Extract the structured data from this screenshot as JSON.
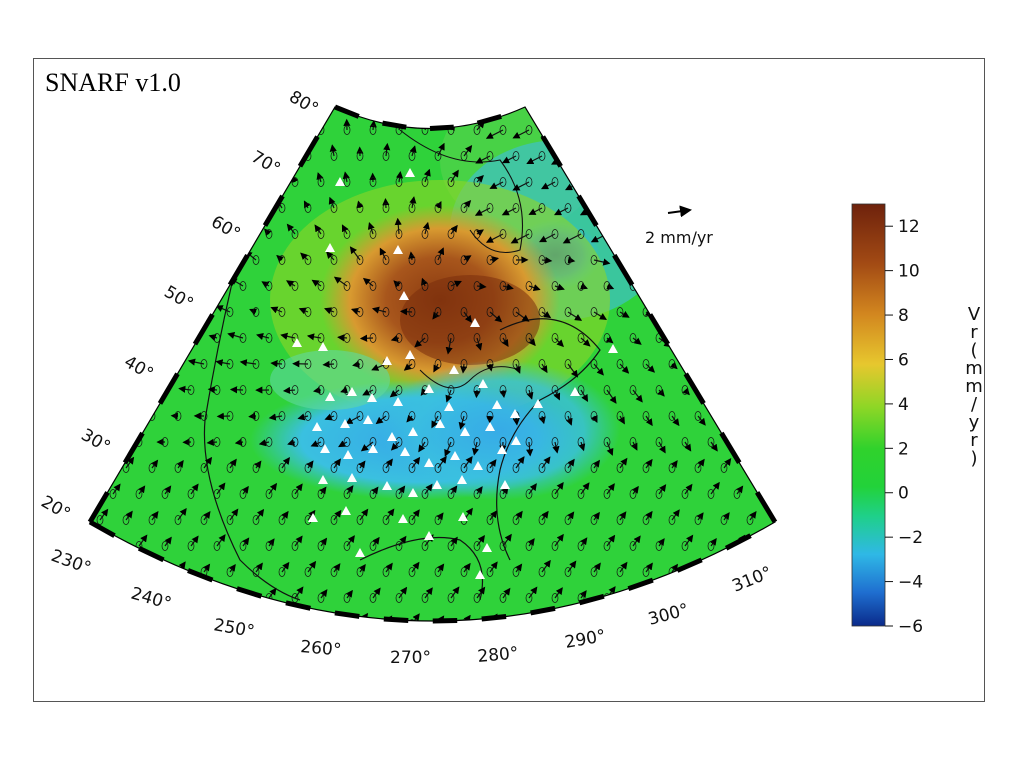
{
  "title": "SNARF v1.0",
  "reference_arrow": {
    "label": "2 mm/yr"
  },
  "map": {
    "lon_labels": [
      "230°",
      "240°",
      "250°",
      "260°",
      "270°",
      "280°",
      "290°",
      "300°",
      "310°"
    ],
    "lat_labels": [
      "20°",
      "30°",
      "40°",
      "50°",
      "60°",
      "70°",
      "80°"
    ]
  },
  "colorbar": {
    "title_chars": [
      "V",
      "r",
      "(",
      "m",
      "m",
      "/",
      "y",
      "r",
      ")"
    ],
    "ticks": [
      "12",
      "10",
      "8",
      "6",
      "4",
      "2",
      "0",
      "−2",
      "−4",
      "−6"
    ],
    "range": [
      -6,
      13
    ],
    "colors": [
      "#0a2a8a",
      "#1f6fd0",
      "#2fb8e6",
      "#1fd08a",
      "#22d23a",
      "#30d22c",
      "#8fd626",
      "#e7c72e",
      "#d2861f",
      "#a24a14",
      "#6e220c"
    ]
  },
  "colors": {
    "land_green": "#2fd23a",
    "uplift_brown": "#8a3a10",
    "subsidence_blue": "#3a9ae0",
    "station_marker": "#ffffff"
  }
}
